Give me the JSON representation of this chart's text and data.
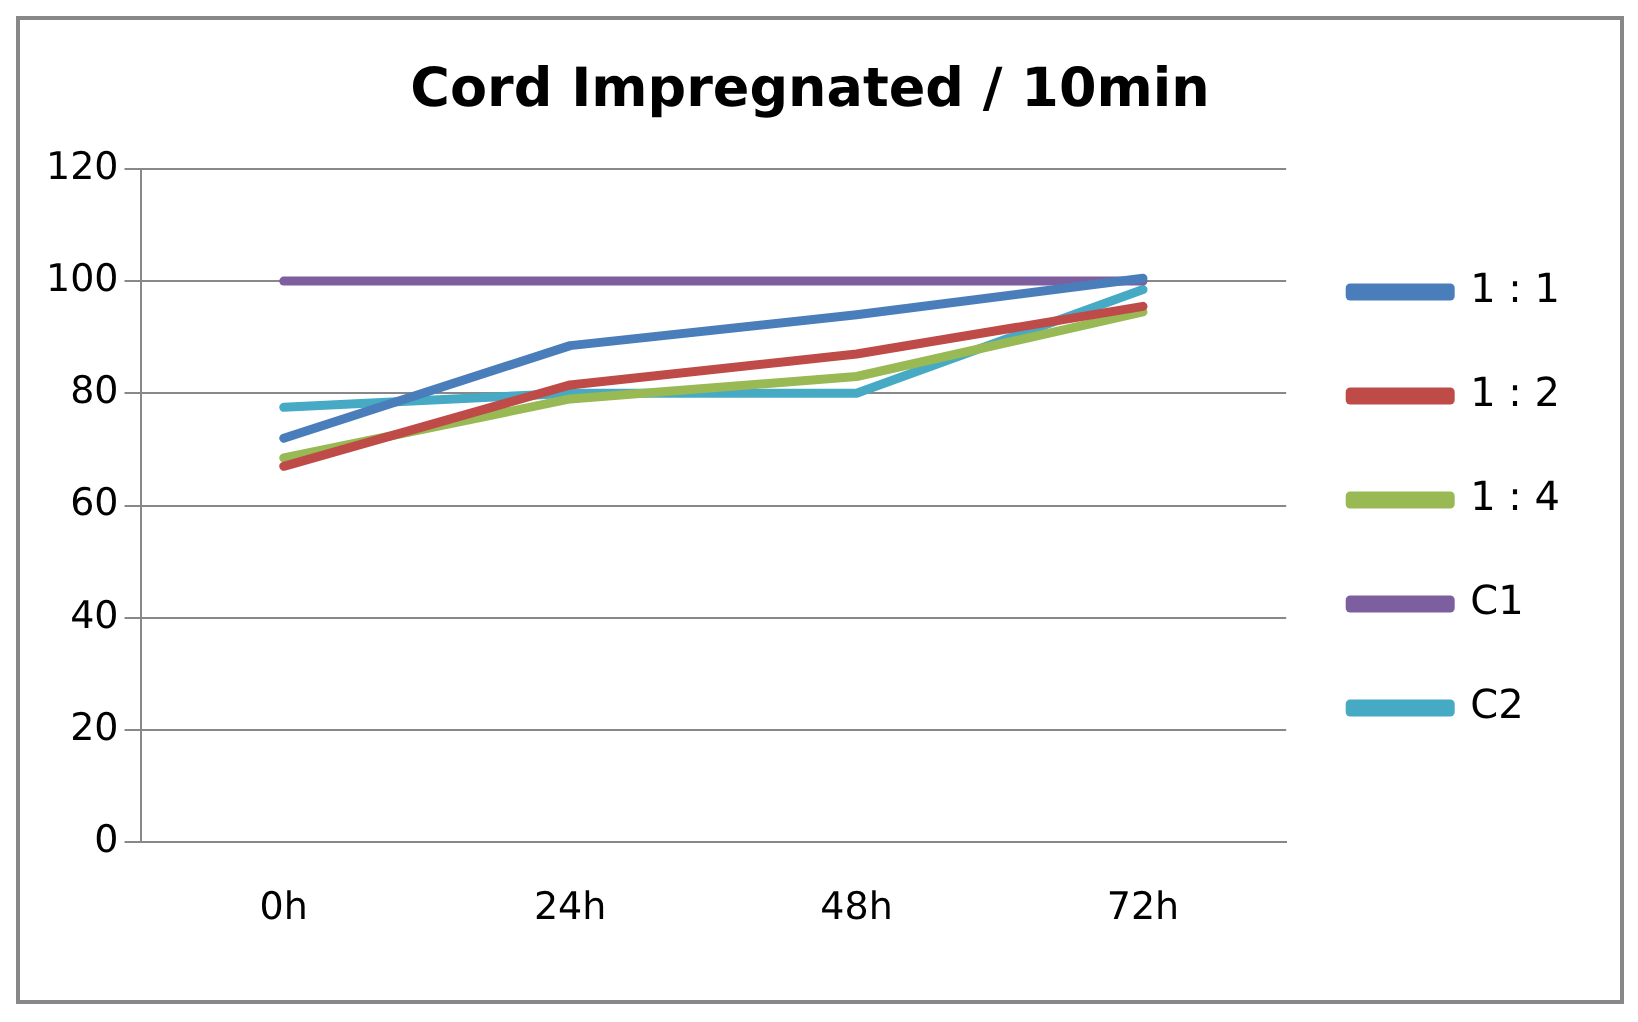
{
  "chart_data": {
    "type": "line",
    "title": "Cord Impregnated / 10min",
    "categories": [
      "0h",
      "24h",
      "48h",
      "72h"
    ],
    "series": [
      {
        "name": "1 : 1",
        "color": "#4a7ebb",
        "values": [
          72,
          88.5,
          94,
          100.5
        ]
      },
      {
        "name": "1 : 2",
        "color": "#be4b48",
        "values": [
          67,
          81.5,
          87,
          95.5
        ]
      },
      {
        "name": "1 : 4",
        "color": "#98b954",
        "values": [
          68.5,
          79,
          83,
          94.5
        ]
      },
      {
        "name": "C1",
        "color": "#7d5fa0",
        "values": [
          100,
          100,
          100,
          100
        ]
      },
      {
        "name": "C2",
        "color": "#46aac5",
        "values": [
          77.5,
          80,
          80,
          98.5
        ]
      }
    ],
    "ylim": [
      0,
      120
    ],
    "yticks": [
      0,
      20,
      40,
      60,
      80,
      100,
      120
    ],
    "grid": "y",
    "legend": "right",
    "marker": "none",
    "line_style": "solid"
  }
}
